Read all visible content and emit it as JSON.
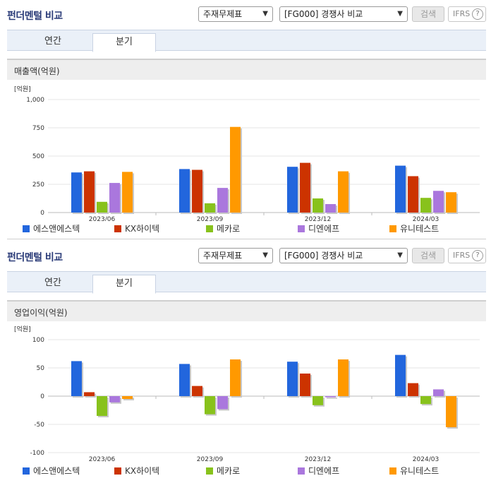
{
  "panels": [
    {
      "header": {
        "title": "펀더멘털 비교",
        "statement_select": "주재무제표",
        "compare_select": "[FG000] 경쟁사 비교",
        "search_label": "검색",
        "ifrs_label": "IFRS",
        "help_glyph": "?"
      },
      "tabs": [
        {
          "label": "연간",
          "active": false
        },
        {
          "label": "분기",
          "active": true
        }
      ],
      "chart_title": "매출액(억원)",
      "chart_data": {
        "type": "bar",
        "unit_label": "[억원]",
        "categories": [
          "2023/06",
          "2023/09",
          "2023/12",
          "2024/03"
        ],
        "ylim": [
          0,
          1000
        ],
        "yticks": [
          0,
          250,
          500,
          750,
          1000
        ],
        "ytick_labels": [
          "0",
          "250",
          "500",
          "750",
          "1,000"
        ],
        "grid": true,
        "legend_position": "bottom",
        "series": [
          {
            "name": "에스앤에스텍",
            "color": "#2266dd",
            "values": [
              355,
              385,
              405,
              415
            ]
          },
          {
            "name": "KX하이텍",
            "color": "#cc3300",
            "values": [
              365,
              378,
              440,
              322
            ]
          },
          {
            "name": "메카로",
            "color": "#88c21c",
            "values": [
              95,
              82,
              125,
              130
            ]
          },
          {
            "name": "디엔에프",
            "color": "#aa77dd",
            "values": [
              262,
              218,
              75,
              192
            ]
          },
          {
            "name": "유니테스트",
            "color": "#ff9900",
            "values": [
              360,
              758,
              365,
              180
            ]
          }
        ]
      }
    },
    {
      "header": {
        "title": "펀더멘털 비교",
        "statement_select": "주재무제표",
        "compare_select": "[FG000] 경쟁사 비교",
        "search_label": "검색",
        "ifrs_label": "IFRS",
        "help_glyph": "?"
      },
      "tabs": [
        {
          "label": "연간",
          "active": false
        },
        {
          "label": "분기",
          "active": true
        }
      ],
      "chart_title": "영업이익(억원)",
      "chart_data": {
        "type": "bar",
        "unit_label": "[억원]",
        "categories": [
          "2023/06",
          "2023/09",
          "2023/12",
          "2024/03"
        ],
        "ylim": [
          -100,
          100
        ],
        "yticks": [
          -100,
          -50,
          0,
          50,
          100
        ],
        "ytick_labels": [
          "-100",
          "-50",
          "0",
          "50",
          "100"
        ],
        "grid": true,
        "legend_position": "bottom",
        "series": [
          {
            "name": "에스앤에스텍",
            "color": "#2266dd",
            "values": [
              62,
              57,
              61,
              73
            ]
          },
          {
            "name": "KX하이텍",
            "color": "#cc3300",
            "values": [
              7,
              18,
              40,
              23
            ]
          },
          {
            "name": "메카로",
            "color": "#88c21c",
            "values": [
              -35,
              -32,
              -16,
              -14
            ]
          },
          {
            "name": "디엔에프",
            "color": "#aa77dd",
            "values": [
              -11,
              -23,
              -2,
              12
            ]
          },
          {
            "name": "유니테스트",
            "color": "#ff9900",
            "values": [
              -5,
              65,
              65,
              -55
            ]
          }
        ]
      }
    }
  ]
}
